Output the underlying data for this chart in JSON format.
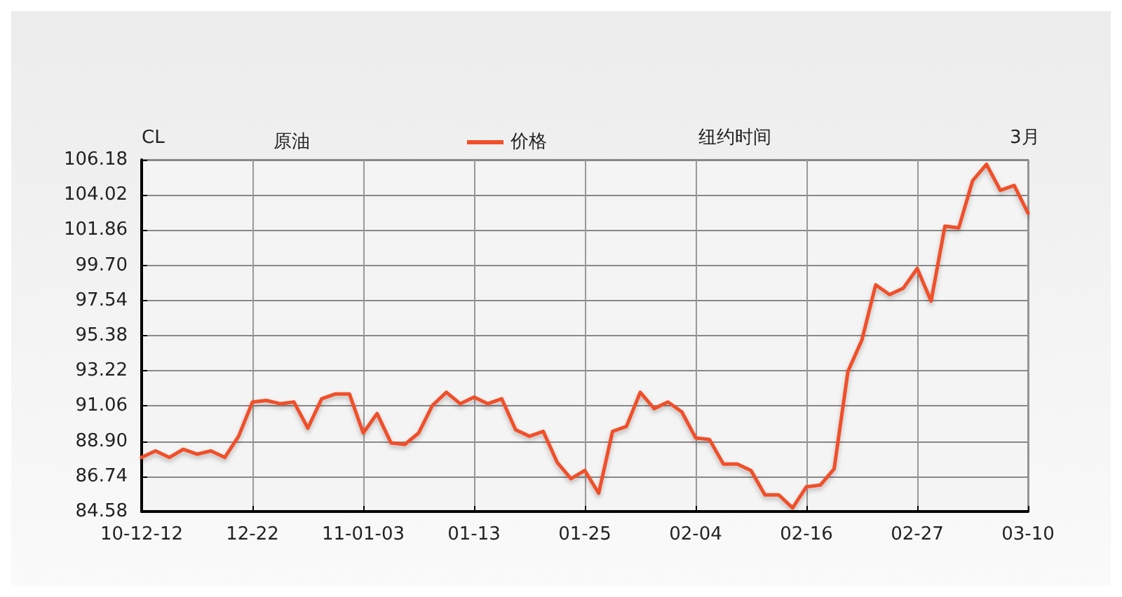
{
  "chart_data": {
    "type": "line",
    "title": "原油",
    "annotations": [
      "CL",
      "纽约时间",
      "3月"
    ],
    "categories": [
      "10-12-12",
      null,
      null,
      null,
      null,
      null,
      null,
      null,
      "12-22",
      null,
      null,
      null,
      null,
      null,
      null,
      null,
      "11-01-03",
      null,
      null,
      null,
      null,
      null,
      null,
      null,
      "01-13",
      null,
      null,
      null,
      null,
      null,
      null,
      null,
      "01-25",
      null,
      null,
      null,
      null,
      null,
      null,
      null,
      "02-04",
      null,
      null,
      null,
      null,
      null,
      null,
      null,
      "02-16",
      null,
      null,
      null,
      null,
      null,
      null,
      null,
      "02-27",
      null,
      null,
      null,
      null,
      null,
      null,
      null,
      "03-10"
    ],
    "series": [
      {
        "name": "价格",
        "color": "#f0502a",
        "values": [
          87.9,
          88.3,
          87.9,
          88.4,
          88.1,
          88.3,
          87.9,
          89.2,
          91.3,
          91.4,
          91.2,
          91.3,
          89.7,
          91.5,
          91.8,
          91.8,
          89.4,
          90.6,
          88.8,
          88.7,
          89.4,
          91.1,
          91.9,
          91.2,
          91.6,
          91.2,
          91.5,
          89.6,
          89.2,
          89.5,
          87.6,
          86.6,
          87.1,
          85.7,
          89.5,
          89.8,
          91.9,
          90.9,
          91.3,
          90.7,
          89.1,
          89.0,
          87.5,
          87.5,
          87.1,
          85.6,
          85.6,
          84.8,
          86.1,
          86.2,
          87.2,
          93.2,
          95.1,
          98.5,
          97.9,
          98.3,
          99.5,
          97.5,
          102.1,
          102.0,
          104.9,
          105.9,
          104.3,
          104.6,
          102.9
        ]
      }
    ],
    "ylim": [
      84.58,
      106.18
    ],
    "yticks": [
      84.58,
      86.74,
      {
        "value": 88.9,
        "label": "88.90"
      },
      91.06,
      93.22,
      95.38,
      97.54,
      {
        "value": 99.7,
        "label": "99.70"
      },
      101.86,
      104.02,
      106.18
    ],
    "grid": true,
    "legend": "top",
    "marker": "none",
    "line_style": "solid"
  }
}
